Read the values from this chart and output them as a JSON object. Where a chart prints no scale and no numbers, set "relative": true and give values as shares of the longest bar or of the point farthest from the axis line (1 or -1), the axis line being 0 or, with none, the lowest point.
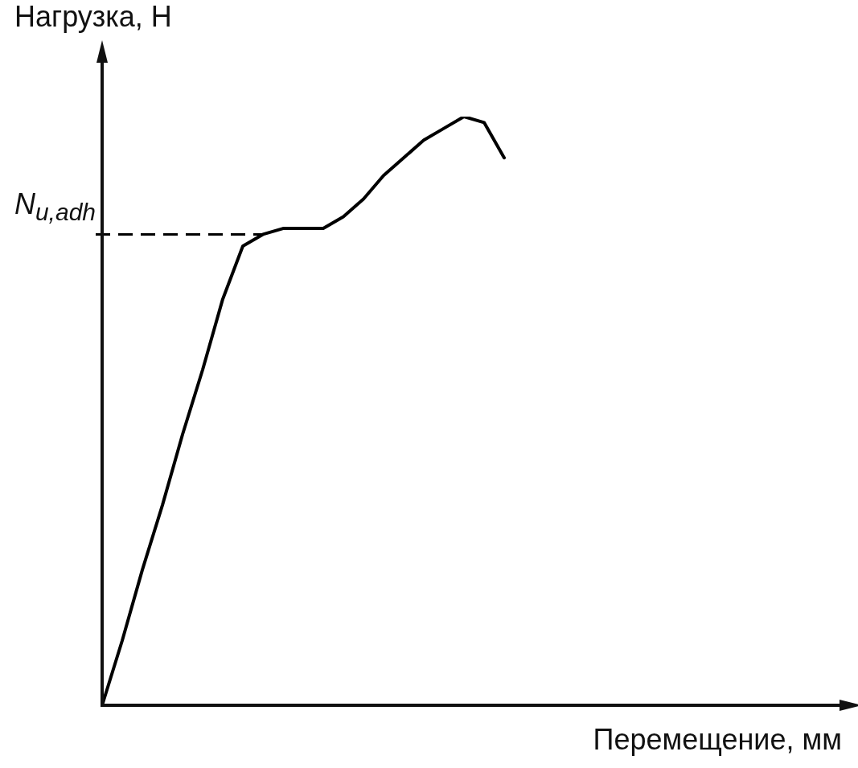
{
  "chart_data": {
    "type": "line",
    "relative": true,
    "xlabel": "Перемещение, мм",
    "ylabel": "Нагрузка, Н",
    "categories": [
      null,
      null,
      null,
      null,
      null,
      null,
      null,
      null,
      null,
      null,
      null,
      null,
      null,
      null,
      null,
      null,
      null,
      null,
      null,
      null,
      null,
      null,
      null,
      null,
      null,
      null,
      null,
      null,
      null,
      null,
      null,
      null,
      null,
      null,
      null,
      null,
      null,
      null
    ],
    "values": [
      0,
      0.11,
      0.23,
      0.34,
      0.46,
      0.57,
      0.69,
      0.78,
      0.8,
      0.81,
      0.81,
      0.81,
      0.83,
      0.86,
      0.9,
      0.93,
      0.96,
      0.98,
      1,
      0.99,
      0.93,
      null,
      null,
      null,
      null,
      null,
      null,
      null,
      null,
      null,
      null,
      null,
      null,
      null,
      null,
      null,
      null,
      null
    ],
    "color": "#000000",
    "marker": "none",
    "line_style": "solid",
    "legend": false,
    "grid": false,
    "ref_lines": [
      {
        "axis": "y",
        "value": 0.8,
        "label": "N$_{u,adh}$",
        "line_style": "dashed",
        "color": "#000000"
      }
    ]
  }
}
